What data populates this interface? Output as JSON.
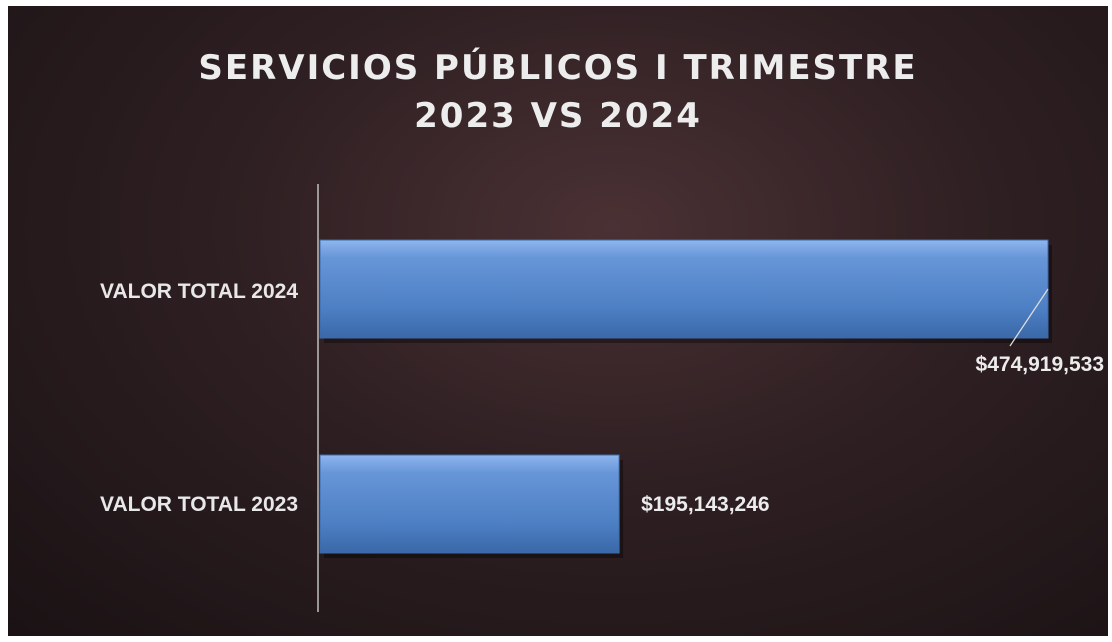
{
  "chart_data": {
    "type": "bar",
    "orientation": "horizontal",
    "title_lines": [
      "SERVICIOS PÚBLICOS I TRIMESTRE",
      "2023 VS 2024"
    ],
    "categories": [
      "VALOR TOTAL 2024",
      "VALOR TOTAL 2023"
    ],
    "values": [
      474919533,
      195143246
    ],
    "value_labels": [
      "$474,919,533",
      "$195,143,246"
    ],
    "xlim": [
      0,
      474919533
    ],
    "grid": false,
    "legend": false,
    "colors": {
      "bar": "#4f81c7",
      "bar_highlight": "#7eaae6",
      "bar_shadow": "#2f5a97",
      "text": "#e8e8e8",
      "axis": "#bfbfbf"
    }
  }
}
